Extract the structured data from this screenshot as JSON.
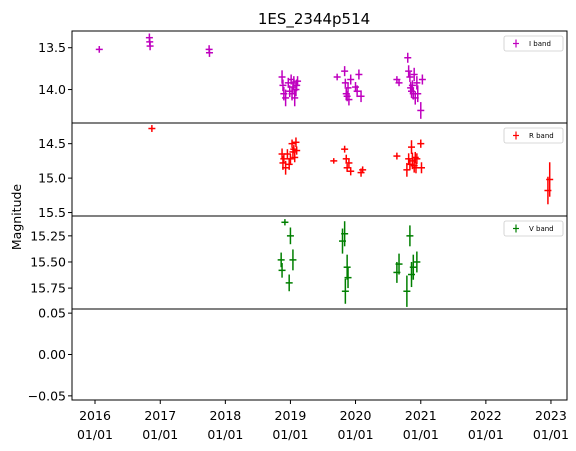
{
  "chart_data": {
    "type": "scatter",
    "title": "1ES_2344p514",
    "ylabel": "Magnitude",
    "xlabel": "",
    "x_axis": {
      "type": "date",
      "range": [
        "2015-08-25",
        "2023-04-01"
      ],
      "ticks": [
        {
          "date": "2016-01-01",
          "label": [
            "2016",
            "01/01"
          ]
        },
        {
          "date": "2017-01-01",
          "label": [
            "2017",
            "01/01"
          ]
        },
        {
          "date": "2018-01-01",
          "label": [
            "2018",
            "01/01"
          ]
        },
        {
          "date": "2019-01-01",
          "label": [
            "2019",
            "01/01"
          ]
        },
        {
          "date": "2020-01-01",
          "label": [
            "2020",
            "01/01"
          ]
        },
        {
          "date": "2021-01-01",
          "label": [
            "2021",
            "01/01"
          ]
        },
        {
          "date": "2022-01-01",
          "label": [
            "2022",
            "01/01"
          ]
        },
        {
          "date": "2023-01-01",
          "label": [
            "2023",
            "01/01"
          ]
        }
      ]
    },
    "grid": false,
    "panels": [
      {
        "name": "I band",
        "color": "#bf00bf",
        "inverted": true,
        "ylim": [
          13.3,
          14.4
        ],
        "yticks": [
          {
            "v": 13.5,
            "label": "13.5"
          },
          {
            "v": 14.0,
            "label": "14.0"
          }
        ],
        "legend": "top-right",
        "points": [
          [
            "2016-01-25",
            13.52,
            0.04
          ],
          [
            "2016-11-01",
            13.38,
            0.05
          ],
          [
            "2016-11-03",
            13.43,
            0.04
          ],
          [
            "2016-11-05",
            13.48,
            0.05
          ],
          [
            "2017-10-02",
            13.52,
            0.05
          ],
          [
            "2017-10-04",
            13.56,
            0.05
          ],
          [
            "2018-11-15",
            13.85,
            0.08
          ],
          [
            "2018-11-20",
            13.95,
            0.07
          ],
          [
            "2018-11-25",
            14.05,
            0.08
          ],
          [
            "2018-12-05",
            14.1,
            0.1
          ],
          [
            "2018-12-20",
            13.92,
            0.06
          ],
          [
            "2018-12-28",
            14.02,
            0.07
          ],
          [
            "2019-01-05",
            13.88,
            0.06
          ],
          [
            "2019-01-10",
            14.05,
            0.08
          ],
          [
            "2019-01-15",
            13.97,
            0.07
          ],
          [
            "2019-01-20",
            13.92,
            0.08
          ],
          [
            "2019-01-25",
            14.1,
            0.1
          ],
          [
            "2019-02-01",
            14.0,
            0.08
          ],
          [
            "2019-02-05",
            13.95,
            0.07
          ],
          [
            "2019-02-10",
            13.9,
            0.06
          ],
          [
            "2019-09-20",
            13.85,
            0.04
          ],
          [
            "2019-11-01",
            13.78,
            0.06
          ],
          [
            "2019-11-05",
            13.92,
            0.05
          ],
          [
            "2019-11-10",
            14.05,
            0.07
          ],
          [
            "2019-11-15",
            14.08,
            0.06
          ],
          [
            "2019-11-20",
            13.98,
            0.06
          ],
          [
            "2019-11-25",
            14.12,
            0.07
          ],
          [
            "2019-12-05",
            13.88,
            0.06
          ],
          [
            "2020-01-01",
            13.97,
            0.06
          ],
          [
            "2020-01-10",
            14.02,
            0.07
          ],
          [
            "2020-01-20",
            13.82,
            0.06
          ],
          [
            "2020-02-01",
            14.08,
            0.07
          ],
          [
            "2020-08-20",
            13.88,
            0.04
          ],
          [
            "2020-09-01",
            13.92,
            0.04
          ],
          [
            "2020-10-20",
            13.62,
            0.06
          ],
          [
            "2020-10-25",
            13.78,
            0.07
          ],
          [
            "2020-11-01",
            13.85,
            0.06
          ],
          [
            "2020-11-05",
            13.98,
            0.07
          ],
          [
            "2020-11-10",
            14.02,
            0.08
          ],
          [
            "2020-11-15",
            13.95,
            0.06
          ],
          [
            "2020-11-20",
            14.05,
            0.07
          ],
          [
            "2020-11-25",
            13.82,
            0.08
          ],
          [
            "2020-12-01",
            14.1,
            0.08
          ],
          [
            "2020-12-10",
            13.92,
            0.08
          ],
          [
            "2020-12-15",
            14.05,
            0.1
          ],
          [
            "2021-01-01",
            14.25,
            0.1
          ],
          [
            "2021-01-10",
            13.88,
            0.06
          ]
        ]
      },
      {
        "name": "R band",
        "color": "#ff0000",
        "inverted": true,
        "ylim": [
          14.2,
          15.55
        ],
        "yticks": [
          {
            "v": 14.5,
            "label": "14.5"
          },
          {
            "v": 15.0,
            "label": "15.0"
          },
          {
            "v": 15.5,
            "label": "15.5"
          }
        ],
        "legend": "top-right",
        "points": [
          [
            "2016-11-15",
            14.28,
            0.05
          ],
          [
            "2018-11-15",
            14.65,
            0.08
          ],
          [
            "2018-11-20",
            14.78,
            0.1
          ],
          [
            "2018-11-25",
            14.72,
            0.06
          ],
          [
            "2018-12-05",
            14.85,
            0.1
          ],
          [
            "2018-12-15",
            14.65,
            0.07
          ],
          [
            "2018-12-25",
            14.8,
            0.08
          ],
          [
            "2019-01-01",
            14.72,
            0.07
          ],
          [
            "2019-01-10",
            14.5,
            0.06
          ],
          [
            "2019-01-15",
            14.62,
            0.07
          ],
          [
            "2019-01-20",
            14.58,
            0.06
          ],
          [
            "2019-01-25",
            14.7,
            0.07
          ],
          [
            "2019-02-01",
            14.48,
            0.07
          ],
          [
            "2019-02-05",
            14.6,
            0.06
          ],
          [
            "2019-09-01",
            14.75,
            0.04
          ],
          [
            "2019-11-01",
            14.58,
            0.05
          ],
          [
            "2019-11-10",
            14.72,
            0.06
          ],
          [
            "2019-11-15",
            14.85,
            0.06
          ],
          [
            "2019-11-25",
            14.78,
            0.06
          ],
          [
            "2019-12-05",
            14.9,
            0.06
          ],
          [
            "2020-02-01",
            14.92,
            0.06
          ],
          [
            "2020-02-10",
            14.88,
            0.05
          ],
          [
            "2020-08-20",
            14.68,
            0.05
          ],
          [
            "2020-10-15",
            14.88,
            0.1
          ],
          [
            "2020-10-25",
            14.72,
            0.08
          ],
          [
            "2020-11-01",
            14.8,
            0.08
          ],
          [
            "2020-11-10",
            14.55,
            0.1
          ],
          [
            "2020-11-15",
            14.75,
            0.12
          ],
          [
            "2020-11-25",
            14.82,
            0.1
          ],
          [
            "2020-12-01",
            14.7,
            0.08
          ],
          [
            "2020-12-05",
            14.85,
            0.08
          ],
          [
            "2020-12-10",
            14.72,
            0.08
          ],
          [
            "2021-01-01",
            14.5,
            0.06
          ],
          [
            "2021-01-05",
            14.85,
            0.08
          ],
          [
            "2022-12-15",
            15.18,
            0.2
          ],
          [
            "2022-12-25",
            15.02,
            0.25
          ]
        ]
      },
      {
        "name": "V band",
        "color": "#007f00",
        "inverted": true,
        "ylim": [
          15.06,
          15.95
        ],
        "yticks": [
          {
            "v": 15.25,
            "label": "15.25"
          },
          {
            "v": 15.5,
            "label": "15.50"
          },
          {
            "v": 15.75,
            "label": "15.75"
          }
        ],
        "legend": "top-right",
        "points": [
          [
            "2018-11-10",
            15.48,
            0.07
          ],
          [
            "2018-11-15",
            15.58,
            0.07
          ],
          [
            "2018-12-01",
            15.12,
            0.03
          ],
          [
            "2018-12-25",
            15.7,
            0.08
          ],
          [
            "2019-01-01",
            15.25,
            0.08
          ],
          [
            "2019-01-15",
            15.48,
            0.1
          ],
          [
            "2019-10-20",
            15.3,
            0.12
          ],
          [
            "2019-11-01",
            15.23,
            0.12
          ],
          [
            "2019-11-05",
            15.78,
            0.12
          ],
          [
            "2019-11-15",
            15.55,
            0.12
          ],
          [
            "2019-11-20",
            15.65,
            0.1
          ],
          [
            "2020-08-20",
            15.6,
            0.1
          ],
          [
            "2020-09-01",
            15.52,
            0.1
          ],
          [
            "2020-10-15",
            15.78,
            0.15
          ],
          [
            "2020-11-01",
            15.25,
            0.1
          ],
          [
            "2020-11-10",
            15.62,
            0.12
          ],
          [
            "2020-11-20",
            15.55,
            0.12
          ],
          [
            "2020-12-10",
            15.5,
            0.1
          ]
        ]
      },
      {
        "name": "",
        "color": "#000000",
        "inverted": false,
        "ylim": [
          -0.055,
          0.055
        ],
        "yticks": [
          {
            "v": 0.05,
            "label": "0.05"
          },
          {
            "v": 0.0,
            "label": "0.00"
          },
          {
            "v": -0.05,
            "label": "−0.05"
          }
        ],
        "points": []
      }
    ]
  }
}
